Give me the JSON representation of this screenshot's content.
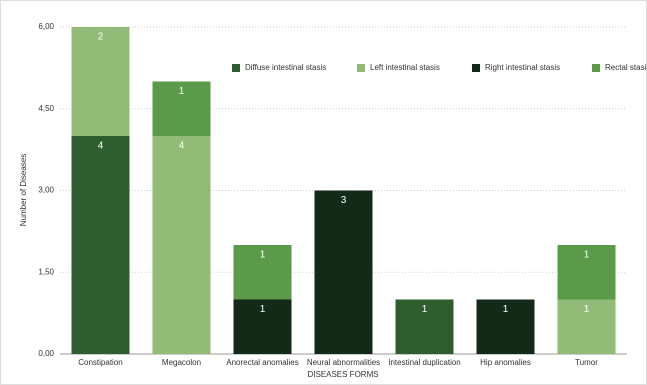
{
  "chart_data": {
    "type": "stacked_bar",
    "categories": [
      "Constipation",
      "Megacolon",
      "Anorectal anomalies",
      "Neural abnormalities",
      "Intestinal duplication",
      "Hip anomalies",
      "Tumor"
    ],
    "series": [
      {
        "name": "Diffuse intestinal stasis",
        "color": "#2f5e2e",
        "values": [
          4,
          null,
          null,
          null,
          1,
          null,
          null
        ]
      },
      {
        "name": "Left intestinal stasis",
        "color": "#93bb78",
        "values": [
          2,
          4,
          null,
          null,
          null,
          null,
          1
        ]
      },
      {
        "name": "Right intestinal stasis",
        "color": "#142a18",
        "values": [
          null,
          null,
          1,
          3,
          null,
          1,
          null
        ]
      },
      {
        "name": "Rectal stasis",
        "color": "#5a9a48",
        "values": [
          null,
          1,
          1,
          null,
          null,
          null,
          1
        ]
      }
    ],
    "ylim": [
      0,
      6
    ],
    "yticks": [
      {
        "value": 0,
        "label": "0,00"
      },
      {
        "value": 1.5,
        "label": "1,50"
      },
      {
        "value": 3,
        "label": "3,00"
      },
      {
        "value": 4.5,
        "label": "4,50"
      },
      {
        "value": 6,
        "label": "6,00"
      }
    ],
    "y_label": "Number of Diseases",
    "x_label": "DISEASES FORMS",
    "grid": true,
    "legend": "top"
  }
}
